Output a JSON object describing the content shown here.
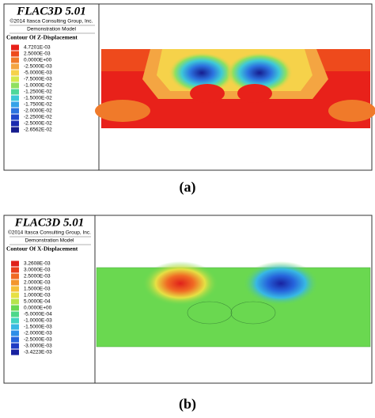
{
  "panels": [
    {
      "header": {
        "title": "FLAC3D 5.01",
        "copyright": "©2014 Itasca Consulting Group, Inc.",
        "model": "Demonstration Model"
      },
      "legend": {
        "title": "Contour Of Z-Displacement",
        "entries": [
          {
            "label": "4.7201E-03",
            "color": "#e8211a"
          },
          {
            "label": "2.5000E-03",
            "color": "#ee4a1c"
          },
          {
            "label": "0.0000E+00",
            "color": "#f07a2a"
          },
          {
            "label": "-2.5000E-03",
            "color": "#f4a542"
          },
          {
            "label": "-5.0000E-03",
            "color": "#f6d24a"
          },
          {
            "label": "-7.5000E-03",
            "color": "#d6e84c"
          },
          {
            "label": "-1.0000E-02",
            "color": "#8fe060"
          },
          {
            "label": "-1.2500E-02",
            "color": "#4fd89a"
          },
          {
            "label": "-1.5000E-02",
            "color": "#3ec8d8"
          },
          {
            "label": "-1.7500E-02",
            "color": "#35a2e8"
          },
          {
            "label": "-2.0000E-02",
            "color": "#2c74e0"
          },
          {
            "label": "-2.2500E-02",
            "color": "#2048cc"
          },
          {
            "label": "-2.5000E-02",
            "color": "#1a2ab0"
          },
          {
            "label": "-2.6562E-02",
            "color": "#161c8e"
          }
        ]
      },
      "caption": "(a)"
    },
    {
      "header": {
        "title": "FLAC3D 5.01",
        "copyright": "©2014 Itasca Consulting Group, Inc.",
        "model": "Demonstration Model"
      },
      "legend": {
        "title": "Contour Of X-Displacement",
        "entries": [
          {
            "label": "3.2608E-03",
            "color": "#e0201a"
          },
          {
            "label": "3.0000E-03",
            "color": "#ea3f1c"
          },
          {
            "label": "2.5000E-03",
            "color": "#f06a24"
          },
          {
            "label": "2.0000E-03",
            "color": "#f3962e"
          },
          {
            "label": "1.5000E-03",
            "color": "#f5c03a"
          },
          {
            "label": "1.0000E-03",
            "color": "#e6e044"
          },
          {
            "label": "5.0000E-04",
            "color": "#b6e44c"
          },
          {
            "label": "0.0000E+00",
            "color": "#6ad850"
          },
          {
            "label": "-5.0000E-04",
            "color": "#4cd88a"
          },
          {
            "label": "-1.0000E-03",
            "color": "#40d4c0"
          },
          {
            "label": "-1.5000E-03",
            "color": "#38b8e4"
          },
          {
            "label": "-2.0000E-03",
            "color": "#2f8ee8"
          },
          {
            "label": "-2.5000E-03",
            "color": "#2664dc"
          },
          {
            "label": "-3.0000E-03",
            "color": "#1e3cc4"
          },
          {
            "label": "-3.4223E-03",
            "color": "#1822a0"
          }
        ]
      },
      "caption": "(b)"
    }
  ]
}
